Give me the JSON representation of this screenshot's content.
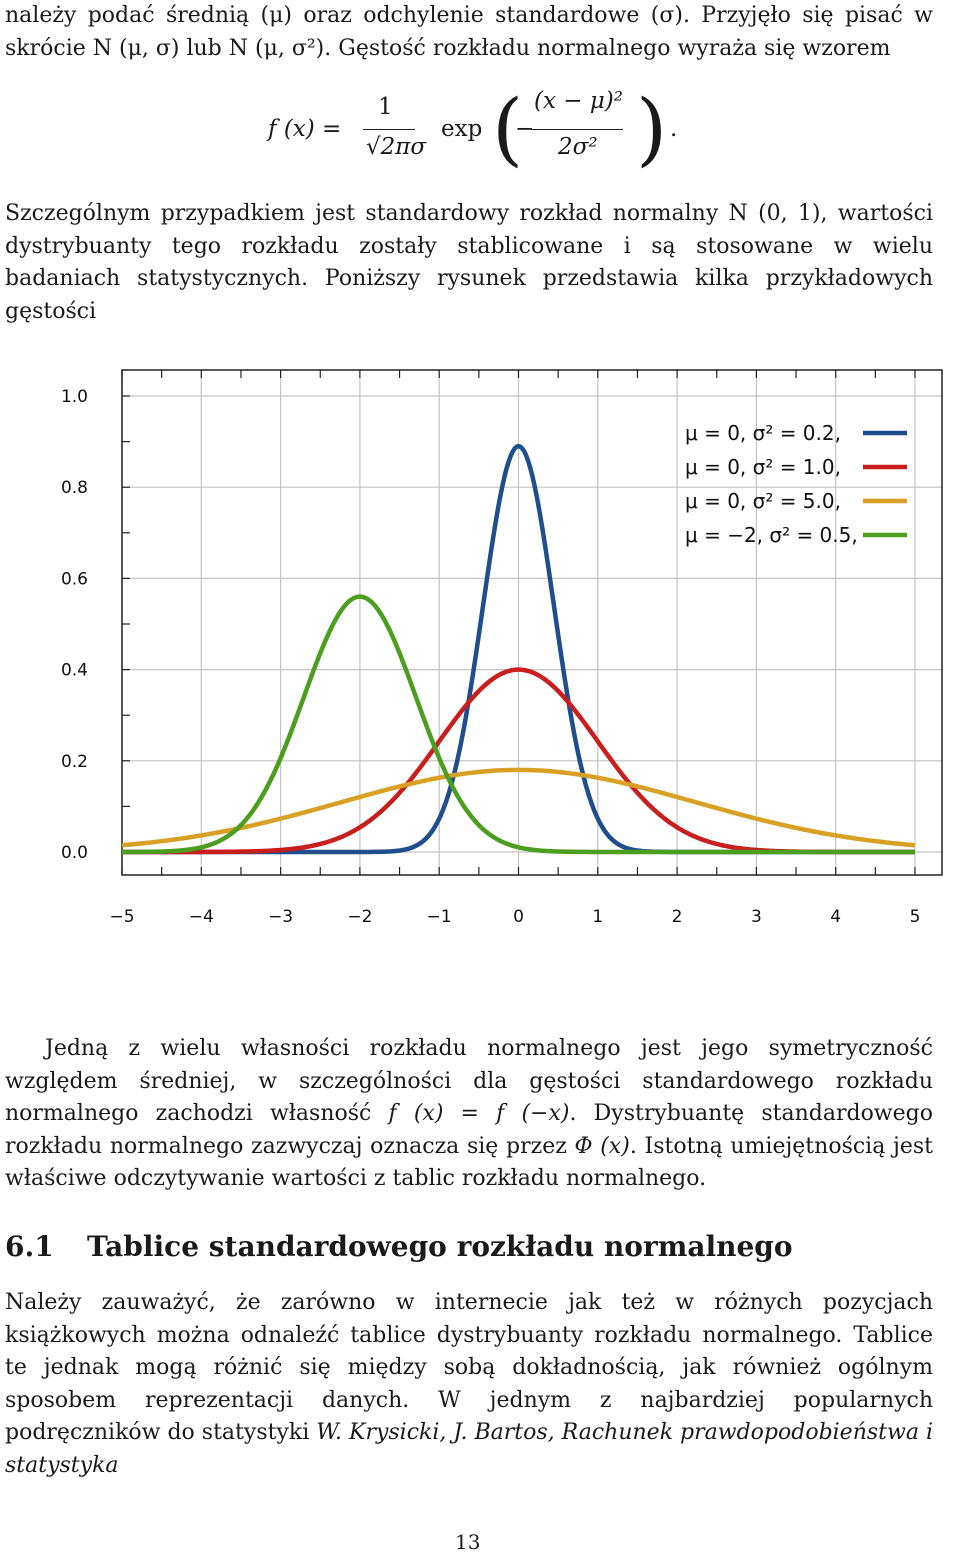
{
  "paragraphs": {
    "intro_1": "należy podać średnią (μ) oraz odchylenie standardowe (σ). Przyjęło się pisać w skrócie N (μ, σ) lub N (μ, σ²). Gęstość rozkładu normalnego wyraża się wzorem",
    "intro_2": "Szczególnym przypadkiem jest standardowy rozkład normalny N (0, 1), wartości dystrybuanty tego rozkładu zostały stablicowane i są stosowane w wielu badaniach statystycznych. Poniższy rysunek przedstawia kilka przykładowych gęstości",
    "symmetry_a": "Jedną z wielu własności rozkładu normalnego jest jego symetryczność względem średniej, w szczególności dla gęstości standardowego rozkładu normalnego zachodzi własność ",
    "symmetry_formula": "f (x) = f (−x)",
    "symmetry_b": ". Dystrybuantę standardowego rozkładu normalnego zazwyczaj oznacza się przez ",
    "symmetry_phi": "Φ (x)",
    "symmetry_c": ". Istotną umiejętnością jest właściwe odczytywanie wartości z tablic rozkładu normalnego.",
    "tables_a": "Należy zauważyć, że zarówno w internecie jak też w różnych pozycjach książkowych można odnaleźć tablice dystrybuanty rozkładu normalnego. Tablice te jednak mogą różnić się między sobą dokładnością, jak również ogólnym sposobem reprezentacji danych. W jednym z najbardziej popularnych podręczników do statystyki ",
    "tables_ref": "W. Krysicki, J. Bartos, Rachunek prawdopodobieństwa i statystyka"
  },
  "formula": {
    "lhs": "f (x) =",
    "num1": "1",
    "den1": "√2πσ",
    "exp": "exp",
    "open": "(",
    "minus": "−",
    "num2": "(x − μ)²",
    "den2": "2σ²",
    "close": ")",
    "dot": "."
  },
  "section": {
    "number": "6.1",
    "title": "Tablice standardowego rozkładu normalnego"
  },
  "page_number": "13",
  "chart_data": {
    "type": "line",
    "title": "",
    "xlabel": "",
    "ylabel": "",
    "xlim": [
      -5,
      5
    ],
    "ylim": [
      0,
      1.0
    ],
    "x_ticks": [
      "−5",
      "−4",
      "−3",
      "−2",
      "−1",
      "0",
      "1",
      "2",
      "3",
      "4",
      "5"
    ],
    "y_ticks": [
      "0.0",
      "0.2",
      "0.4",
      "0.6",
      "0.8",
      "1.0"
    ],
    "grid": true,
    "legend_position": "top-right",
    "series": [
      {
        "name": "μ = 0,  σ² = 0.2,",
        "mu": 0,
        "variance": 0.2,
        "peak": 0.89,
        "color": "#1f4e8c"
      },
      {
        "name": "μ = 0,  σ² = 1.0,",
        "mu": 0,
        "variance": 1.0,
        "peak": 0.4,
        "color": "#c81e1e"
      },
      {
        "name": "μ = 0,  σ² = 5.0,",
        "mu": 0,
        "variance": 5.0,
        "peak": 0.18,
        "color": "#d8a024"
      },
      {
        "name": "μ = −2,  σ² = 0.5,",
        "mu": -2,
        "variance": 0.5,
        "peak": 0.56,
        "color": "#4b9e1e"
      }
    ]
  }
}
